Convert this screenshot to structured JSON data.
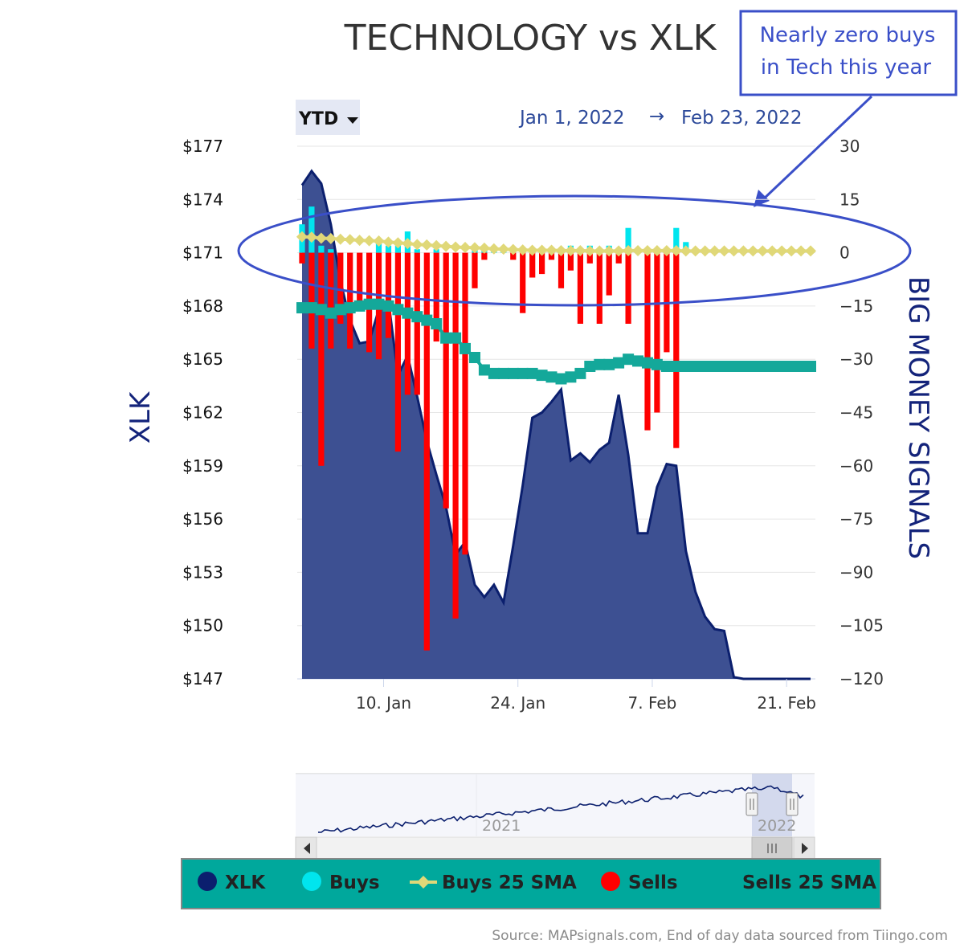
{
  "title": "TECHNOLOGY vs XLK",
  "annotation": {
    "line1": "Nearly zero buys",
    "line2": "in Tech this year"
  },
  "range_selector": {
    "label": "YTD",
    "icon": "caret-down-icon"
  },
  "date_range": {
    "from": "Jan 1, 2022",
    "arrow": "→",
    "to": "Feb 23, 2022"
  },
  "navigator": {
    "label_2021": "2021",
    "label_2022": "2022",
    "handle_icon": "grip-icon",
    "scroll_left_icon": "arrow-left-icon",
    "scroll_right_icon": "arrow-right-icon"
  },
  "legend": [
    {
      "label": "XLK",
      "color": "#0b1f6e",
      "marker": "circle"
    },
    {
      "label": "Buys",
      "color": "#00e5ee",
      "marker": "circle"
    },
    {
      "label": "Buys 25 SMA",
      "color": "#e0d878",
      "marker": "diamond-line"
    },
    {
      "label": "Sells",
      "color": "#ff0000",
      "marker": "circle"
    },
    {
      "label": "Sells 25 SMA",
      "color": "#14a89a",
      "marker": "none"
    }
  ],
  "source": "Source: MAPsignals.com, End of day data sourced from Tiingo.com",
  "colors": {
    "area": "#3d5092",
    "area_line": "#0b1f6e",
    "buys": "#00e5ee",
    "sells": "#ff0000",
    "buys_sma": "#e0d878",
    "sells_sma": "#14a89a",
    "legend_bg": "#00a89c",
    "annotation": "#3a4fc8"
  },
  "chart_data": {
    "type": "area+bar",
    "title": "TECHNOLOGY vs XLK",
    "xlabel": "",
    "ylabel_left": "XLK",
    "ylabel_right": "BIG MONEY SIGNALS",
    "ylim_left": [
      147,
      177
    ],
    "ylim_right": [
      -120,
      30
    ],
    "yticks_left": [
      "$177",
      "$174",
      "$171",
      "$168",
      "$165",
      "$162",
      "$159",
      "$156",
      "$153",
      "$150",
      "$147"
    ],
    "yticks_right": [
      "30",
      "15",
      "0",
      "−15",
      "−30",
      "−45",
      "−60",
      "−75",
      "−90",
      "−105",
      "−120"
    ],
    "xticks": [
      {
        "label": "10. Jan",
        "day": 9.5
      },
      {
        "label": "24. Jan",
        "day": 23.5
      },
      {
        "label": "7. Feb",
        "day": 37.5
      },
      {
        "label": "21. Feb",
        "day": 51.5
      }
    ],
    "days": [
      1,
      2,
      3,
      4,
      5,
      6,
      7,
      8,
      9,
      10,
      11,
      12,
      13,
      14,
      15,
      16,
      17,
      18,
      19,
      20,
      21,
      22,
      23,
      24,
      25,
      26,
      27,
      28,
      29,
      30,
      31,
      32,
      33,
      34,
      35,
      36,
      37,
      38,
      39,
      40,
      41,
      42,
      43,
      44,
      45,
      46,
      47,
      48,
      49,
      50,
      51,
      52,
      53,
      54
    ],
    "xlk": [
      174.8,
      175.6,
      174.9,
      172.6,
      169.4,
      167.2,
      165.9,
      166.0,
      167.8,
      168.3,
      164.1,
      165.2,
      162.9,
      160.4,
      158.5,
      156.7,
      154.0,
      154.7,
      152.3,
      151.6,
      152.3,
      151.3,
      154.5,
      157.9,
      161.7,
      162.0,
      162.6,
      163.3,
      159.3,
      159.7,
      159.2,
      159.9,
      160.3,
      163.0,
      159.6,
      155.2,
      155.2,
      157.8,
      159.1,
      159.0,
      154.2,
      151.9,
      150.5,
      149.8,
      149.7,
      147.1,
      147.0,
      147.0,
      147.0,
      147.0,
      147.0,
      147.0,
      147.0,
      147.0
    ],
    "buys": [
      8,
      13,
      2,
      1,
      0,
      0,
      0,
      0,
      3,
      2,
      2,
      6,
      1,
      0,
      1,
      0,
      0,
      0,
      1,
      1,
      1,
      1,
      0,
      0,
      1,
      1,
      0,
      0,
      2,
      0,
      2,
      1,
      2,
      0,
      7,
      1,
      0,
      1,
      0,
      7,
      3,
      0,
      0,
      0,
      0,
      0,
      0,
      0,
      0,
      0,
      0,
      0,
      0,
      0
    ],
    "sells": [
      -3,
      -27,
      -60,
      -27,
      -20,
      -27,
      -15,
      -28,
      -30,
      -24,
      -56,
      -40,
      -40,
      -112,
      -25,
      -72,
      -103,
      -85,
      -10,
      -2,
      0,
      0,
      -2,
      -17,
      -7,
      -6,
      -2,
      -10,
      -5,
      -20,
      -3,
      -20,
      -12,
      -3,
      -20,
      0,
      -50,
      -45,
      -28,
      -55,
      0,
      0,
      0,
      0,
      0,
      0,
      0,
      0,
      0,
      0,
      0,
      0,
      0,
      0
    ],
    "buys_sma": [
      4.5,
      4.4,
      4.1,
      4.0,
      3.8,
      3.7,
      3.5,
      3.4,
      3.3,
      3.0,
      2.8,
      2.6,
      2.3,
      2.2,
      2.0,
      1.8,
      1.6,
      1.5,
      1.4,
      1.3,
      1.1,
      1.0,
      0.9,
      0.8,
      0.7,
      0.7,
      0.7,
      0.6,
      0.6,
      0.6,
      0.5,
      0.5,
      0.5,
      0.5,
      0.6,
      0.6,
      0.6,
      0.6,
      0.6,
      0.6,
      0.5,
      0.5,
      0.5,
      0.5,
      0.5,
      0.5,
      0.5,
      0.5,
      0.5,
      0.5,
      0.5,
      0.5,
      0.5,
      0.5
    ],
    "sells_sma": [
      -15.5,
      -15.5,
      -16,
      -17,
      -16,
      -15.5,
      -15,
      -14.5,
      -14.5,
      -15,
      -16,
      -17,
      -18,
      -19,
      -20,
      -24,
      -24,
      -27,
      -29.5,
      -33,
      -34,
      -34,
      -34,
      -34,
      -34,
      -34.5,
      -35,
      -35.5,
      -35,
      -34,
      -32,
      -31.5,
      -31.5,
      -31,
      -30,
      -30.5,
      -31,
      -31.5,
      -32,
      -32,
      -32,
      -32,
      -32,
      -32,
      -32,
      -32,
      -32,
      -32,
      -32,
      -32,
      -32,
      -32,
      -32,
      -32
    ]
  }
}
